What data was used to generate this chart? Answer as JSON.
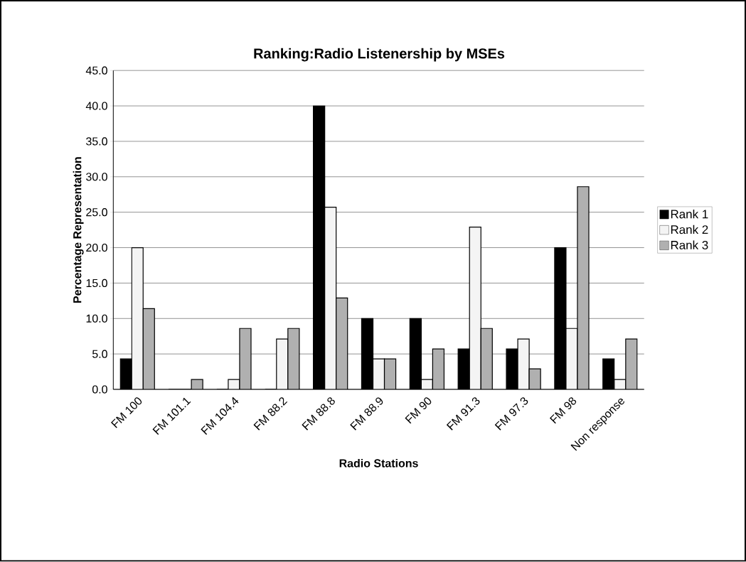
{
  "chart_data": {
    "type": "bar",
    "title": "Ranking:Radio Listenership by MSEs",
    "xlabel": "Radio Stations",
    "ylabel": "Percentage Representation",
    "categories": [
      "FM 100",
      "FM 101.1",
      "FM 104.4",
      "FM 88.2",
      "FM 88.8",
      "FM 88.9",
      "FM 90",
      "FM 91.3",
      "FM 97.3",
      "FM 98",
      "Non response"
    ],
    "series": [
      {
        "name": "Rank 1",
        "color": "#000000",
        "values": [
          4.3,
          0,
          0,
          0,
          40.0,
          10.0,
          10.0,
          5.7,
          5.7,
          20.0,
          4.3
        ]
      },
      {
        "name": "Rank 2",
        "color": "#f4f4f4",
        "values": [
          20.0,
          0,
          1.4,
          7.1,
          25.7,
          4.3,
          1.4,
          22.9,
          7.1,
          8.6,
          1.4
        ]
      },
      {
        "name": "Rank 3",
        "color": "#b0b0b0",
        "values": [
          11.4,
          1.4,
          8.6,
          8.6,
          12.9,
          4.3,
          5.7,
          8.6,
          2.9,
          28.6,
          7.1
        ]
      }
    ],
    "ylim": [
      0,
      45
    ],
    "yticks": [
      {
        "value": 0,
        "label": "0.0"
      },
      {
        "value": 5,
        "label": "5.0"
      },
      {
        "value": 10,
        "label": "10.0"
      },
      {
        "value": 15,
        "label": "15.0"
      },
      {
        "value": 20,
        "label": "20.0"
      },
      {
        "value": 25,
        "label": "25.0"
      },
      {
        "value": 30,
        "label": "30.0"
      },
      {
        "value": 35,
        "label": "35.0"
      },
      {
        "value": 40,
        "label": "40.0"
      },
      {
        "value": 45,
        "label": "45.0"
      }
    ],
    "grid": "y",
    "legend": "right"
  }
}
